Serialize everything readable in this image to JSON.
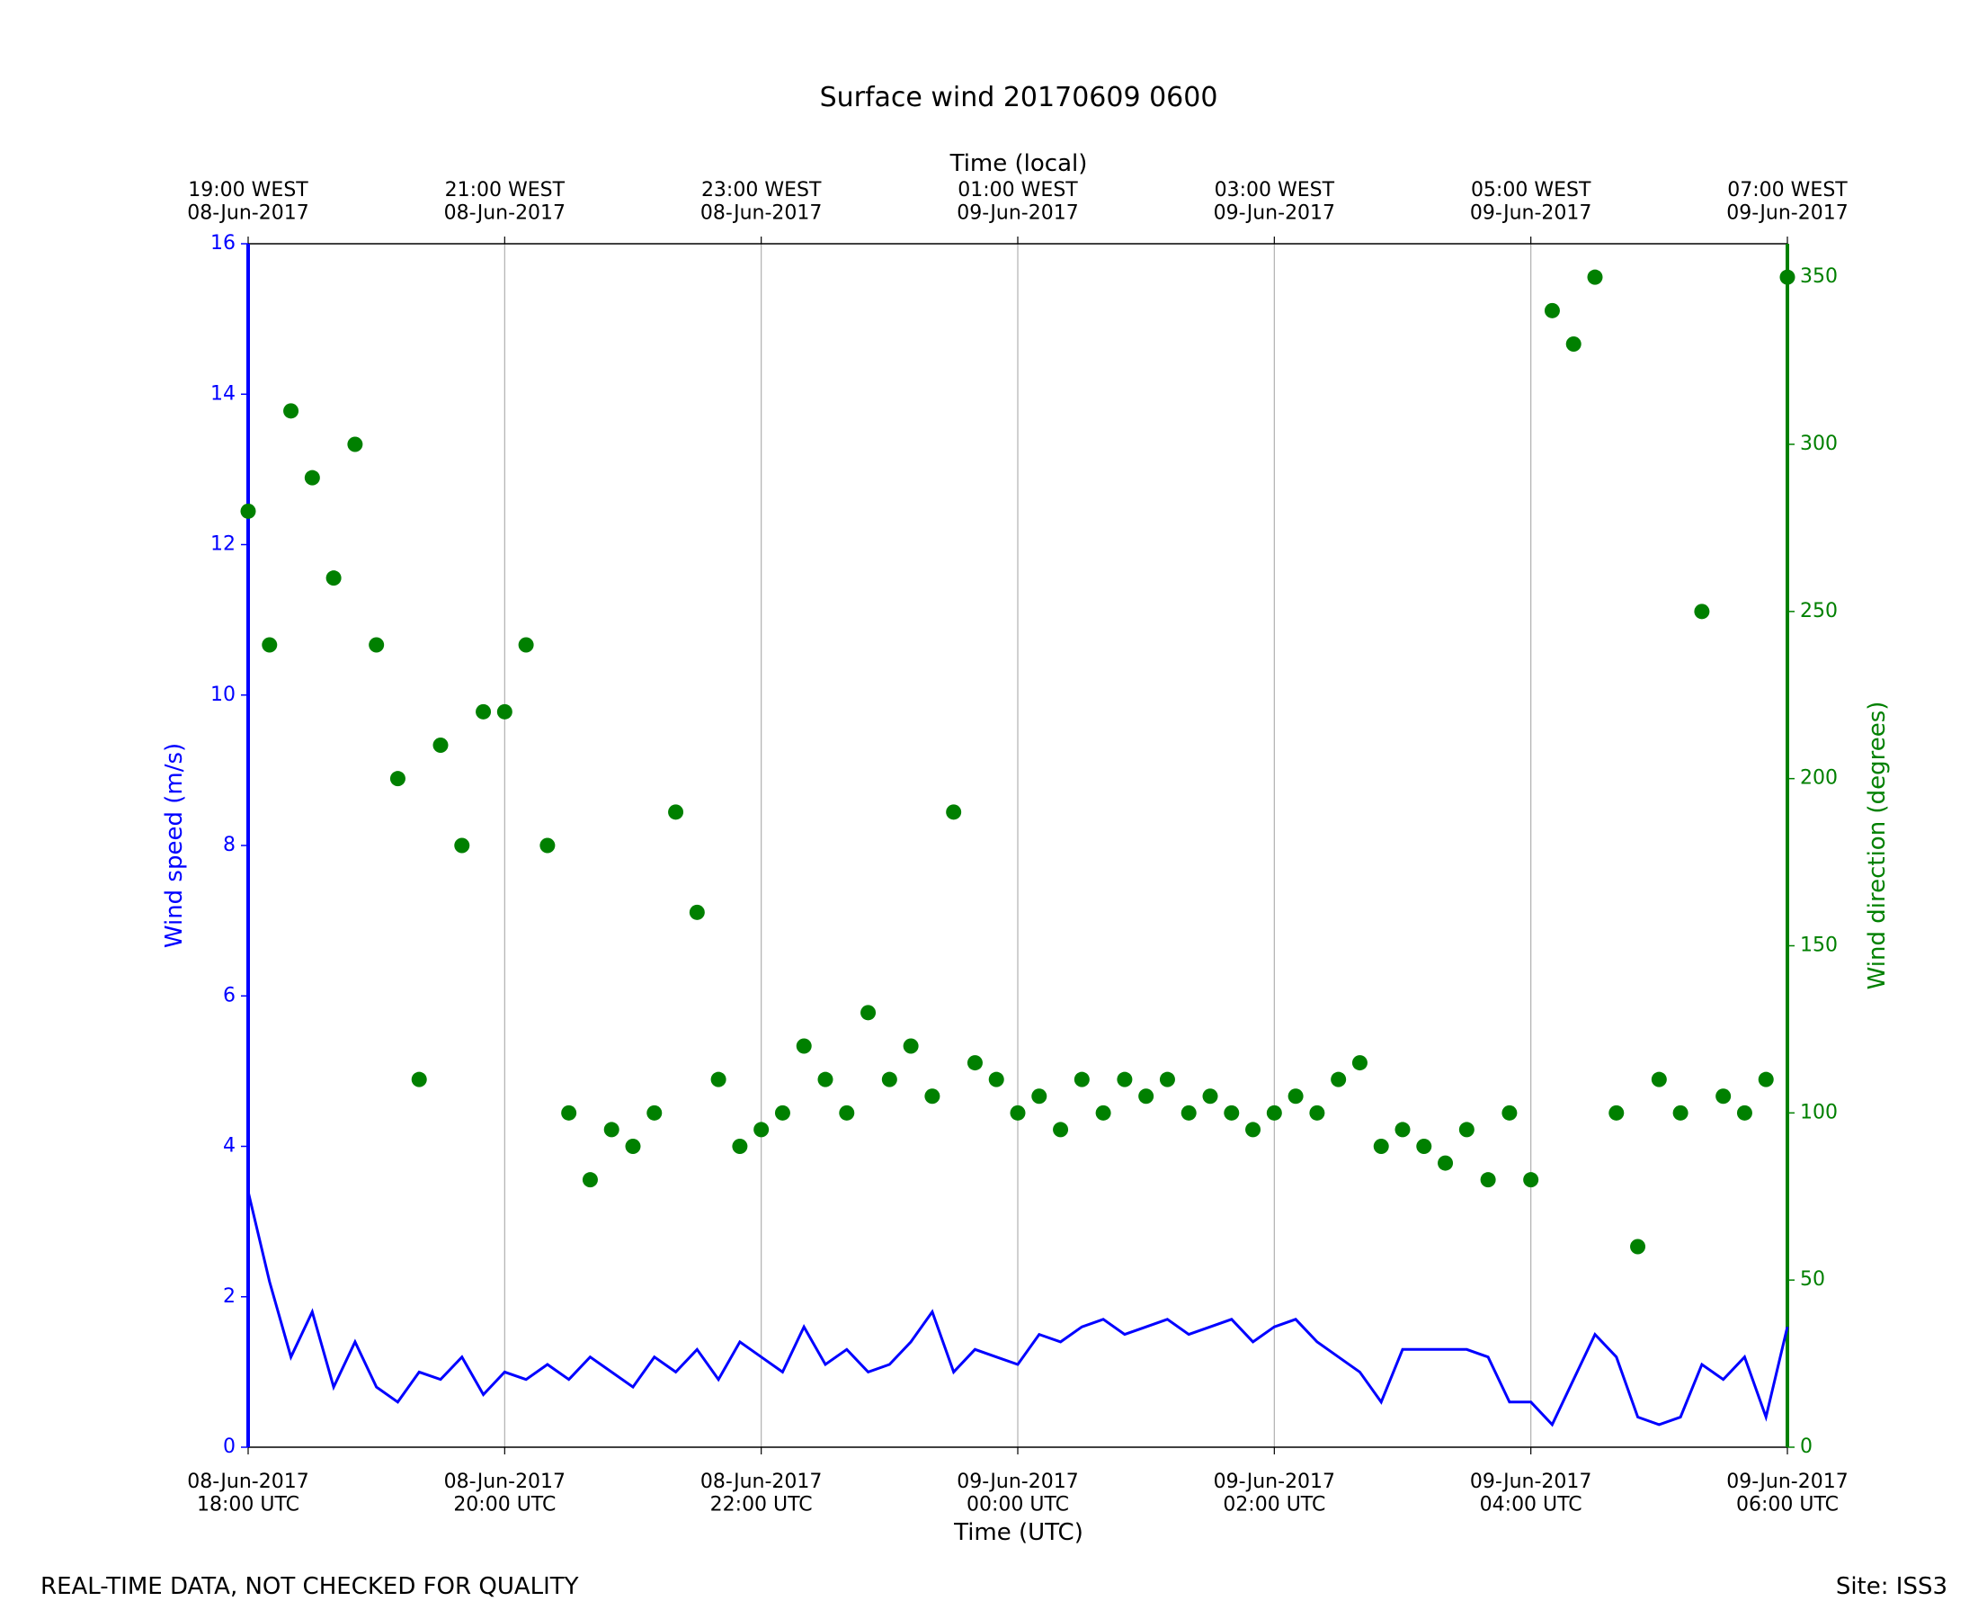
{
  "chart_data": {
    "type": "line-scatter",
    "title": "Surface wind 20170609 0600",
    "xlabel": "Time (UTC)",
    "x2label": "Time (local)",
    "ylabel": "Wind speed (m/s)",
    "y2label": "Wind direction (degrees)",
    "footer_left": "REAL-TIME DATA, NOT CHECKED FOR QUALITY",
    "footer_right": "Site: ISS3",
    "xlim": [
      "2017-06-08T18:00",
      "2017-06-09T06:00"
    ],
    "xticks": [
      {
        "value": "2017-06-08T18:00",
        "label": "08-Jun-2017\n18:00 UTC"
      },
      {
        "value": "2017-06-08T20:00",
        "label": "08-Jun-2017\n20:00 UTC"
      },
      {
        "value": "2017-06-08T22:00",
        "label": "08-Jun-2017\n22:00 UTC"
      },
      {
        "value": "2017-06-09T00:00",
        "label": "09-Jun-2017\n00:00 UTC"
      },
      {
        "value": "2017-06-09T02:00",
        "label": "09-Jun-2017\n02:00 UTC"
      },
      {
        "value": "2017-06-09T04:00",
        "label": "09-Jun-2017\n04:00 UTC"
      },
      {
        "value": "2017-06-09T06:00",
        "label": "09-Jun-2017\n06:00 UTC"
      }
    ],
    "x2ticks": [
      {
        "value": "2017-06-08T18:00",
        "label": "19:00 WEST\n08-Jun-2017"
      },
      {
        "value": "2017-06-08T20:00",
        "label": "21:00 WEST\n08-Jun-2017"
      },
      {
        "value": "2017-06-08T22:00",
        "label": "23:00 WEST\n08-Jun-2017"
      },
      {
        "value": "2017-06-09T00:00",
        "label": "01:00 WEST\n09-Jun-2017"
      },
      {
        "value": "2017-06-09T02:00",
        "label": "03:00 WEST\n09-Jun-2017"
      },
      {
        "value": "2017-06-09T04:00",
        "label": "05:00 WEST\n09-Jun-2017"
      },
      {
        "value": "2017-06-09T06:00",
        "label": "07:00 WEST\n09-Jun-2017"
      }
    ],
    "ylim": [
      0,
      16
    ],
    "yticks": [
      0,
      2,
      4,
      6,
      8,
      10,
      12,
      14,
      16
    ],
    "y2lim": [
      0,
      360
    ],
    "y2ticks": [
      0,
      50,
      100,
      150,
      200,
      250,
      300,
      350
    ],
    "grid": true,
    "x": [
      "2017-06-08T18:00",
      "2017-06-08T18:10",
      "2017-06-08T18:20",
      "2017-06-08T18:30",
      "2017-06-08T18:40",
      "2017-06-08T18:50",
      "2017-06-08T19:00",
      "2017-06-08T19:10",
      "2017-06-08T19:20",
      "2017-06-08T19:30",
      "2017-06-08T19:40",
      "2017-06-08T19:50",
      "2017-06-08T20:00",
      "2017-06-08T20:10",
      "2017-06-08T20:20",
      "2017-06-08T20:30",
      "2017-06-08T20:40",
      "2017-06-08T20:50",
      "2017-06-08T21:00",
      "2017-06-08T21:10",
      "2017-06-08T21:20",
      "2017-06-08T21:30",
      "2017-06-08T21:40",
      "2017-06-08T21:50",
      "2017-06-08T22:00",
      "2017-06-08T22:10",
      "2017-06-08T22:20",
      "2017-06-08T22:30",
      "2017-06-08T22:40",
      "2017-06-08T22:50",
      "2017-06-08T23:00",
      "2017-06-08T23:10",
      "2017-06-08T23:20",
      "2017-06-08T23:30",
      "2017-06-08T23:40",
      "2017-06-08T23:50",
      "2017-06-09T00:00",
      "2017-06-09T00:10",
      "2017-06-09T00:20",
      "2017-06-09T00:30",
      "2017-06-09T00:40",
      "2017-06-09T00:50",
      "2017-06-09T01:00",
      "2017-06-09T01:10",
      "2017-06-09T01:20",
      "2017-06-09T01:30",
      "2017-06-09T01:40",
      "2017-06-09T01:50",
      "2017-06-09T02:00",
      "2017-06-09T02:10",
      "2017-06-09T02:20",
      "2017-06-09T02:30",
      "2017-06-09T02:40",
      "2017-06-09T02:50",
      "2017-06-09T03:00",
      "2017-06-09T03:10",
      "2017-06-09T03:20",
      "2017-06-09T03:30",
      "2017-06-09T03:40",
      "2017-06-09T03:50",
      "2017-06-09T04:00",
      "2017-06-09T04:10",
      "2017-06-09T04:20",
      "2017-06-09T04:30",
      "2017-06-09T04:40",
      "2017-06-09T04:50",
      "2017-06-09T05:00",
      "2017-06-09T05:10",
      "2017-06-09T05:20",
      "2017-06-09T05:30",
      "2017-06-09T05:40",
      "2017-06-09T05:50",
      "2017-06-09T06:00"
    ],
    "series": [
      {
        "name": "Wind speed",
        "color": "#0000ff",
        "mark": "line",
        "values": [
          3.4,
          2.2,
          1.2,
          1.8,
          0.8,
          1.4,
          0.8,
          0.6,
          1.0,
          0.9,
          1.2,
          0.7,
          1.0,
          0.9,
          1.1,
          0.9,
          1.2,
          1.0,
          0.8,
          1.2,
          1.0,
          1.3,
          0.9,
          1.4,
          1.2,
          1.0,
          1.6,
          1.1,
          1.3,
          1.0,
          1.1,
          1.4,
          1.8,
          1.0,
          1.3,
          1.2,
          1.1,
          1.5,
          1.4,
          1.6,
          1.7,
          1.5,
          1.6,
          1.7,
          1.5,
          1.6,
          1.7,
          1.4,
          1.6,
          1.7,
          1.4,
          1.2,
          1.0,
          0.6,
          1.3,
          1.3,
          1.3,
          1.3,
          1.2,
          0.6,
          0.6,
          0.3,
          0.9,
          1.5,
          1.2,
          0.4,
          0.3,
          0.4,
          1.1,
          0.9,
          1.2,
          0.4,
          1.6
        ]
      },
      {
        "name": "Wind direction",
        "color": "#008000",
        "mark": "scatter",
        "axis": "y2",
        "values": [
          280,
          240,
          310,
          290,
          260,
          300,
          240,
          200,
          110,
          210,
          180,
          220,
          220,
          240,
          180,
          100,
          80,
          95,
          90,
          100,
          190,
          160,
          110,
          90,
          95,
          100,
          120,
          110,
          100,
          130,
          110,
          120,
          105,
          190,
          115,
          110,
          100,
          105,
          95,
          110,
          100,
          110,
          105,
          110,
          100,
          105,
          100,
          95,
          100,
          105,
          100,
          110,
          115,
          90,
          95,
          90,
          85,
          95,
          80,
          100,
          80,
          340,
          330,
          350,
          100,
          60,
          110,
          100,
          250,
          105,
          100,
          110,
          350
        ]
      }
    ]
  }
}
